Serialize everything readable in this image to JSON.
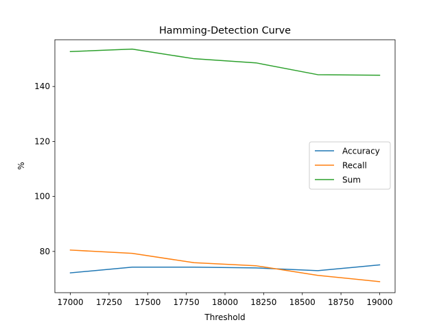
{
  "chart_data": {
    "type": "line",
    "title": "Hamming-Detection Curve",
    "xlabel": "Threshold",
    "ylabel": "%",
    "x": [
      17000,
      17400,
      17800,
      18200,
      18600,
      19000
    ],
    "xlim": [
      16900,
      19100
    ],
    "ylim": [
      65,
      157
    ],
    "xticks": [
      17000,
      17250,
      17500,
      17750,
      18000,
      18250,
      18500,
      18750,
      19000
    ],
    "yticks": [
      80,
      100,
      120,
      140
    ],
    "grid": false,
    "legend_position": "center-right",
    "series": [
      {
        "name": "Accuracy",
        "color": "#1f77b4",
        "values": [
          72.2,
          74.3,
          74.3,
          74.0,
          73.0,
          75.1
        ]
      },
      {
        "name": "Recall",
        "color": "#ff7f0e",
        "values": [
          80.5,
          79.3,
          75.9,
          74.8,
          71.3,
          69.0
        ]
      },
      {
        "name": "Sum",
        "color": "#2ca02c",
        "values": [
          152.7,
          153.6,
          150.1,
          148.6,
          144.3,
          144.1
        ]
      }
    ]
  }
}
